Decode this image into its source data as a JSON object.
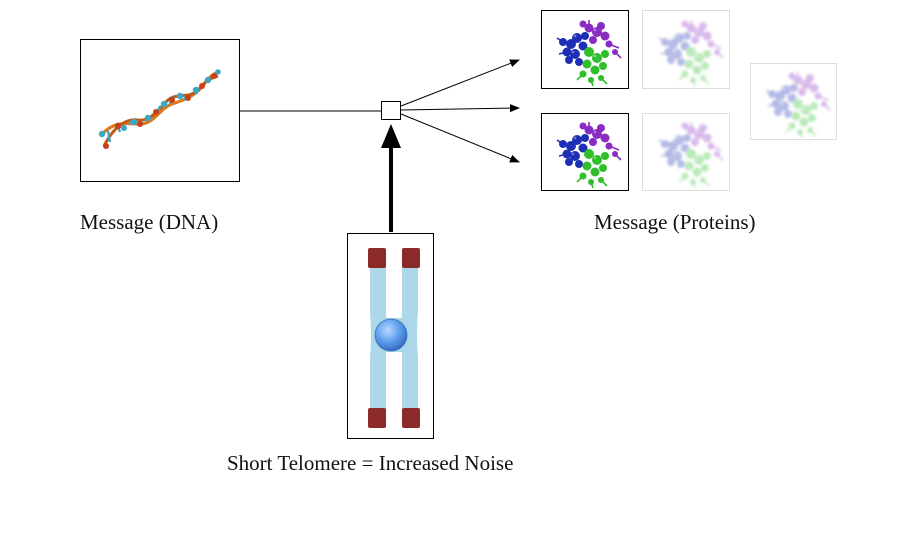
{
  "labels": {
    "dna": "Message (DNA)",
    "proteins": "Message (Proteins)",
    "telomere": "Short Telomere = Increased Noise"
  },
  "colors": {
    "arrow": "#000000",
    "frame": "#000000",
    "faded_frame": "#bbbbbb",
    "dna_strand": "#d97a1e",
    "dna_rung": "#3aa7c4",
    "dna_node": "#c8401a",
    "protein_blue": "#1f2fb5",
    "protein_purple": "#8a2bc2",
    "protein_green": "#2fbf2a",
    "chromosome_arm": "#a9d6e8",
    "telomere_cap": "#8c2a2a",
    "centromere": "#4a8be0"
  },
  "icons": {
    "dna": "dna-helix-icon",
    "protein": "protein-molecule-icon",
    "chromosome": "chromosome-icon"
  }
}
